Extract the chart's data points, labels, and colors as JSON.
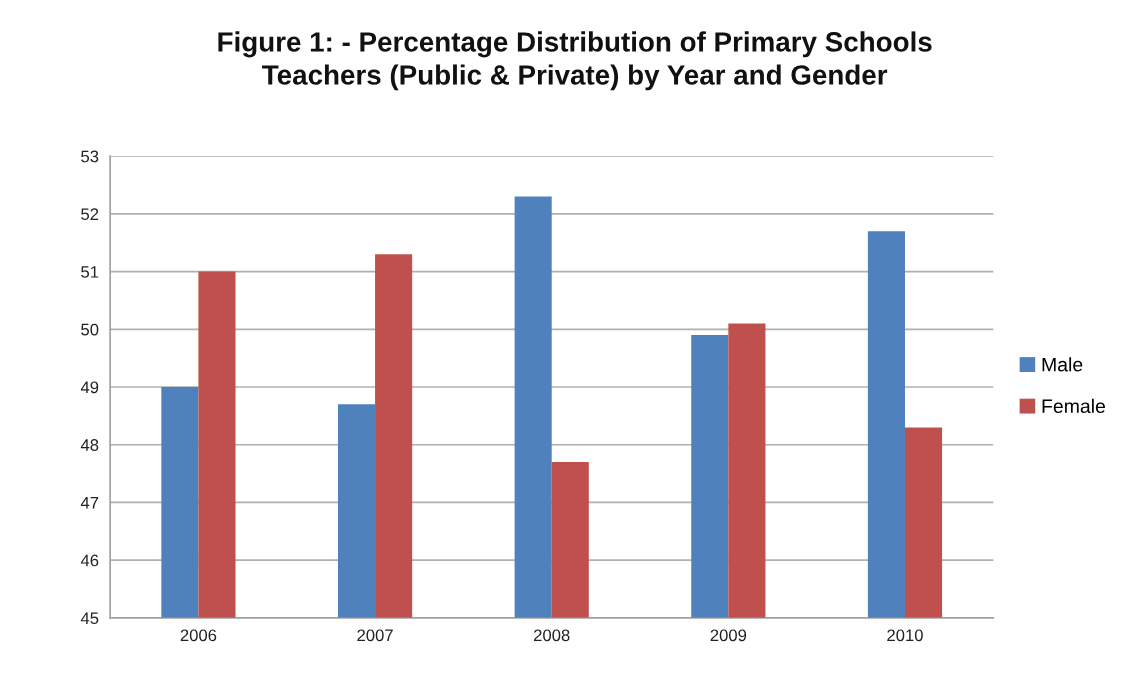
{
  "chart_data": {
    "type": "bar",
    "title": "Figure 1: - Percentage Distribution of Primary Schools\nTeachers (Public & Private) by Year and Gender",
    "categories": [
      "2006",
      "2007",
      "2008",
      "2009",
      "2010"
    ],
    "series": [
      {
        "name": "Male",
        "color": "#4f81bd",
        "values": [
          49.0,
          48.7,
          52.3,
          49.9,
          51.7
        ]
      },
      {
        "name": "Female",
        "color": "#c0504d",
        "values": [
          51.0,
          51.3,
          47.7,
          50.1,
          48.3
        ]
      }
    ],
    "ylim": [
      45,
      53
    ],
    "yticks": [
      45,
      46,
      47,
      48,
      49,
      50,
      51,
      52,
      53
    ],
    "grid": "y",
    "legend": "right"
  }
}
